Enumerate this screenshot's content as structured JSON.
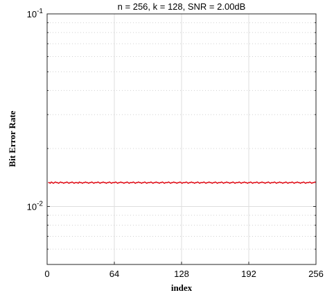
{
  "chart_data": {
    "type": "line",
    "title": "n = 256, k = 128, SNR = 2.00dB",
    "xlabel": "index",
    "ylabel": "Bit Error Rate",
    "xlim": [
      0,
      256
    ],
    "ylim": [
      0.005,
      0.1
    ],
    "yscale": "log",
    "grid": true,
    "x_ticks": [
      0,
      64,
      128,
      192,
      256
    ],
    "x_tick_labels": [
      "0",
      "64",
      "128",
      "192",
      "256"
    ],
    "y_tick_labels": [
      {
        "value": 0.1,
        "base": "10",
        "exp": "-1"
      },
      {
        "value": 0.01,
        "base": "10",
        "exp": "-2"
      }
    ],
    "series": [
      {
        "color": "#e0141e",
        "x_start": 1,
        "x_end": 256,
        "values": [
          0.0133,
          0.0133,
          0.0132,
          0.0134,
          0.0133,
          0.0132,
          0.0133,
          0.0134,
          0.0133,
          0.0133,
          0.0132,
          0.0133,
          0.0134,
          0.0133,
          0.0133,
          0.0132,
          0.0133,
          0.0133,
          0.0134,
          0.0133,
          0.0132,
          0.0133,
          0.0133,
          0.0134,
          0.0133,
          0.0132,
          0.0133,
          0.0133,
          0.0133,
          0.0132,
          0.0134,
          0.0133,
          0.0133,
          0.0132,
          0.0133,
          0.0133,
          0.0134,
          0.0133,
          0.0133,
          0.0132,
          0.0133,
          0.0133,
          0.0134,
          0.0133,
          0.0132,
          0.0133,
          0.0133,
          0.0133,
          0.0134,
          0.0133,
          0.0132,
          0.0133,
          0.0133,
          0.0134,
          0.0133,
          0.0133,
          0.0132,
          0.0133,
          0.0133,
          0.0134,
          0.0133,
          0.0132,
          0.0133,
          0.0133,
          0.0133,
          0.0134,
          0.0133,
          0.0132,
          0.0133,
          0.0133,
          0.0134,
          0.0133,
          0.0133,
          0.0132,
          0.0133,
          0.0133,
          0.0134,
          0.0133,
          0.0132,
          0.0133,
          0.0133,
          0.0133,
          0.0134,
          0.0133,
          0.0132,
          0.0133,
          0.0133,
          0.0134,
          0.0133,
          0.0133,
          0.0132,
          0.0133,
          0.0133,
          0.0134,
          0.0133,
          0.0132,
          0.0133,
          0.0133,
          0.0133,
          0.0134,
          0.0133,
          0.0132,
          0.0133,
          0.0133,
          0.0134,
          0.0133,
          0.0133,
          0.0132,
          0.0133,
          0.0133,
          0.0134,
          0.0133,
          0.0132,
          0.0133,
          0.0133,
          0.0133,
          0.0134,
          0.0133,
          0.0132,
          0.0133,
          0.0133,
          0.0134,
          0.0133,
          0.0133,
          0.0132,
          0.0133,
          0.0133,
          0.0134,
          0.0133,
          0.0132,
          0.0133,
          0.0133,
          0.0133,
          0.0134,
          0.0133,
          0.0132,
          0.0133,
          0.0133,
          0.0134,
          0.0133,
          0.0133,
          0.0132,
          0.0133,
          0.0133,
          0.0134,
          0.0133,
          0.0132,
          0.0133,
          0.0133,
          0.0133,
          0.0134,
          0.0133,
          0.0132,
          0.0133,
          0.0133,
          0.0134,
          0.0133,
          0.0133,
          0.0132,
          0.0133,
          0.0133,
          0.0134,
          0.0133,
          0.0132,
          0.0133,
          0.0133,
          0.0133,
          0.0134,
          0.0133,
          0.0132,
          0.0133,
          0.0133,
          0.0134,
          0.0133,
          0.0133,
          0.0132,
          0.0133,
          0.0133,
          0.0134,
          0.0133,
          0.0132,
          0.0133,
          0.0133,
          0.0133,
          0.0134,
          0.0133,
          0.0132,
          0.0133,
          0.0133,
          0.0134,
          0.0133,
          0.0133,
          0.0132,
          0.0133,
          0.0133,
          0.0134,
          0.0133,
          0.0132,
          0.0133,
          0.0133,
          0.0133,
          0.0134,
          0.0133,
          0.0132,
          0.0133,
          0.0133,
          0.0134,
          0.0133,
          0.0133,
          0.0132,
          0.0133,
          0.0133,
          0.0134,
          0.0133,
          0.0132,
          0.0133,
          0.0133,
          0.0133,
          0.0134,
          0.0133,
          0.0132,
          0.0133,
          0.0133,
          0.0134,
          0.0133,
          0.0133,
          0.0132,
          0.0133,
          0.0133,
          0.0134,
          0.0133,
          0.0132,
          0.0133,
          0.0133,
          0.0133,
          0.0134,
          0.0133,
          0.0132,
          0.0133,
          0.0133,
          0.0134,
          0.0133,
          0.0133,
          0.0132,
          0.0133,
          0.0133,
          0.0134,
          0.0133,
          0.0132,
          0.0133,
          0.0133,
          0.0133,
          0.0134,
          0.0133,
          0.0132,
          0.0133,
          0.0133,
          0.0134,
          0.0133
        ]
      }
    ]
  }
}
